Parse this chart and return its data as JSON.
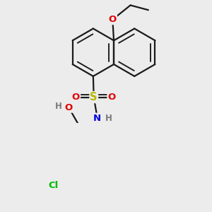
{
  "bg_color": "#ececec",
  "bond_color": "#1a1a1a",
  "bond_width": 1.6,
  "atom_colors": {
    "O": "#e00000",
    "N": "#0000e0",
    "S": "#b8b800",
    "Cl": "#00b800",
    "C": "#1a1a1a",
    "H": "#7a7a7a"
  },
  "font_size": 9.5
}
